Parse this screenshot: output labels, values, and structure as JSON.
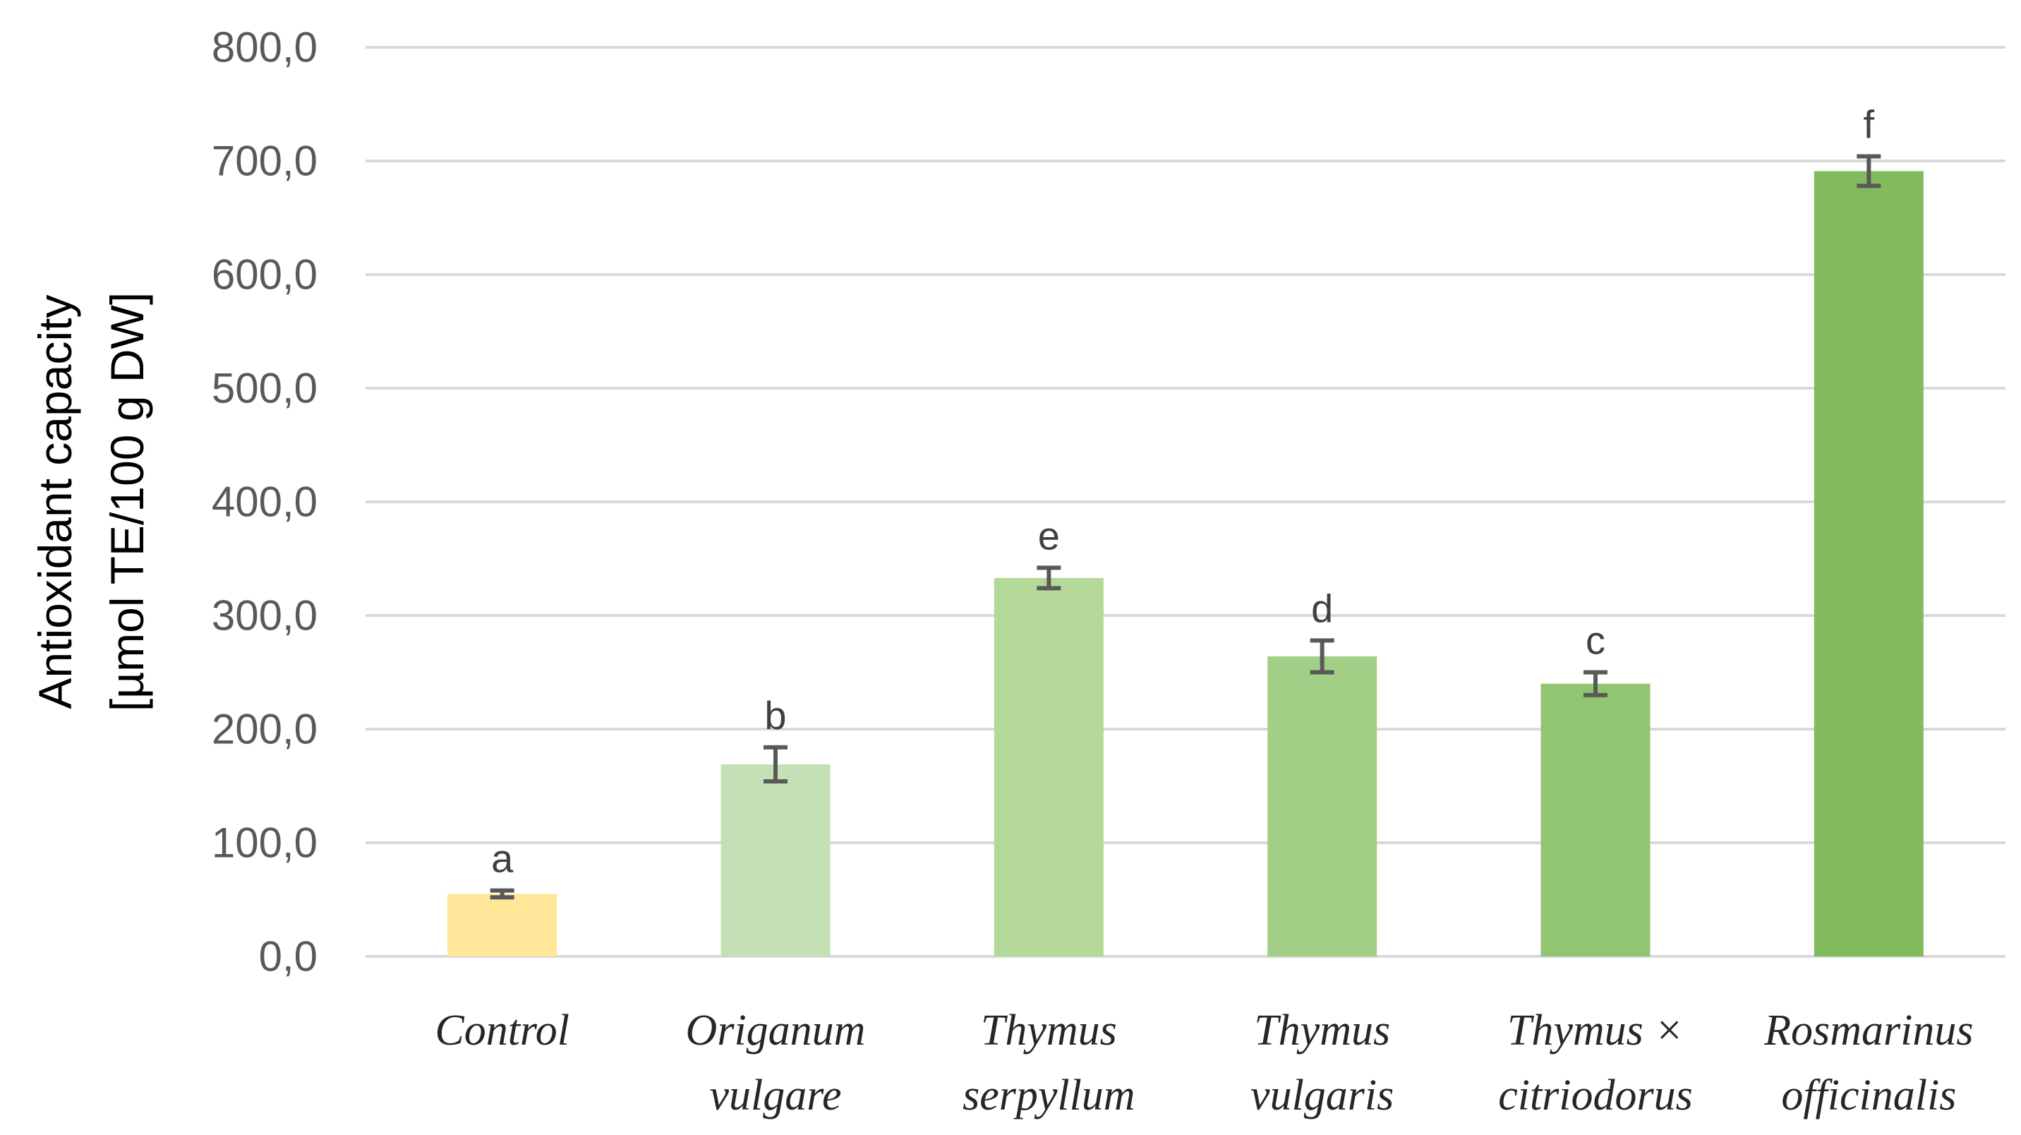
{
  "chart_data": {
    "type": "bar",
    "title": "",
    "xlabel": "",
    "ylabel_lines": [
      "Antioxidant capacity",
      "[µmol TE/100 g DW]"
    ],
    "ylim": [
      0,
      800
    ],
    "yticks": [
      0,
      100,
      200,
      300,
      400,
      500,
      600,
      700,
      800
    ],
    "ytick_labels": [
      "0,0",
      "100,0",
      "200,0",
      "300,0",
      "400,0",
      "500,0",
      "600,0",
      "700,0",
      "800,0"
    ],
    "grid": true,
    "categories": [
      [
        "Control"
      ],
      [
        "Origanum",
        "vulgare"
      ],
      [
        "Thymus",
        "serpyllum"
      ],
      [
        "Thymus",
        "vulgaris"
      ],
      [
        "Thymus ×",
        "citriodorus"
      ],
      [
        "Rosmarinus",
        "officinalis"
      ]
    ],
    "values": [
      55,
      169,
      333,
      264,
      240,
      691
    ],
    "errors": [
      3,
      15,
      9,
      14,
      10,
      13
    ],
    "significance_letters": [
      "a",
      "b",
      "e",
      "d",
      "c",
      "f"
    ],
    "bar_colors": [
      "#FFE699",
      "#C5E0B4",
      "#B4D897",
      "#A2CF86",
      "#92C571",
      "#82BB5D"
    ],
    "gridline_color": "#D9D9D9",
    "error_bar_color": "#595959"
  }
}
